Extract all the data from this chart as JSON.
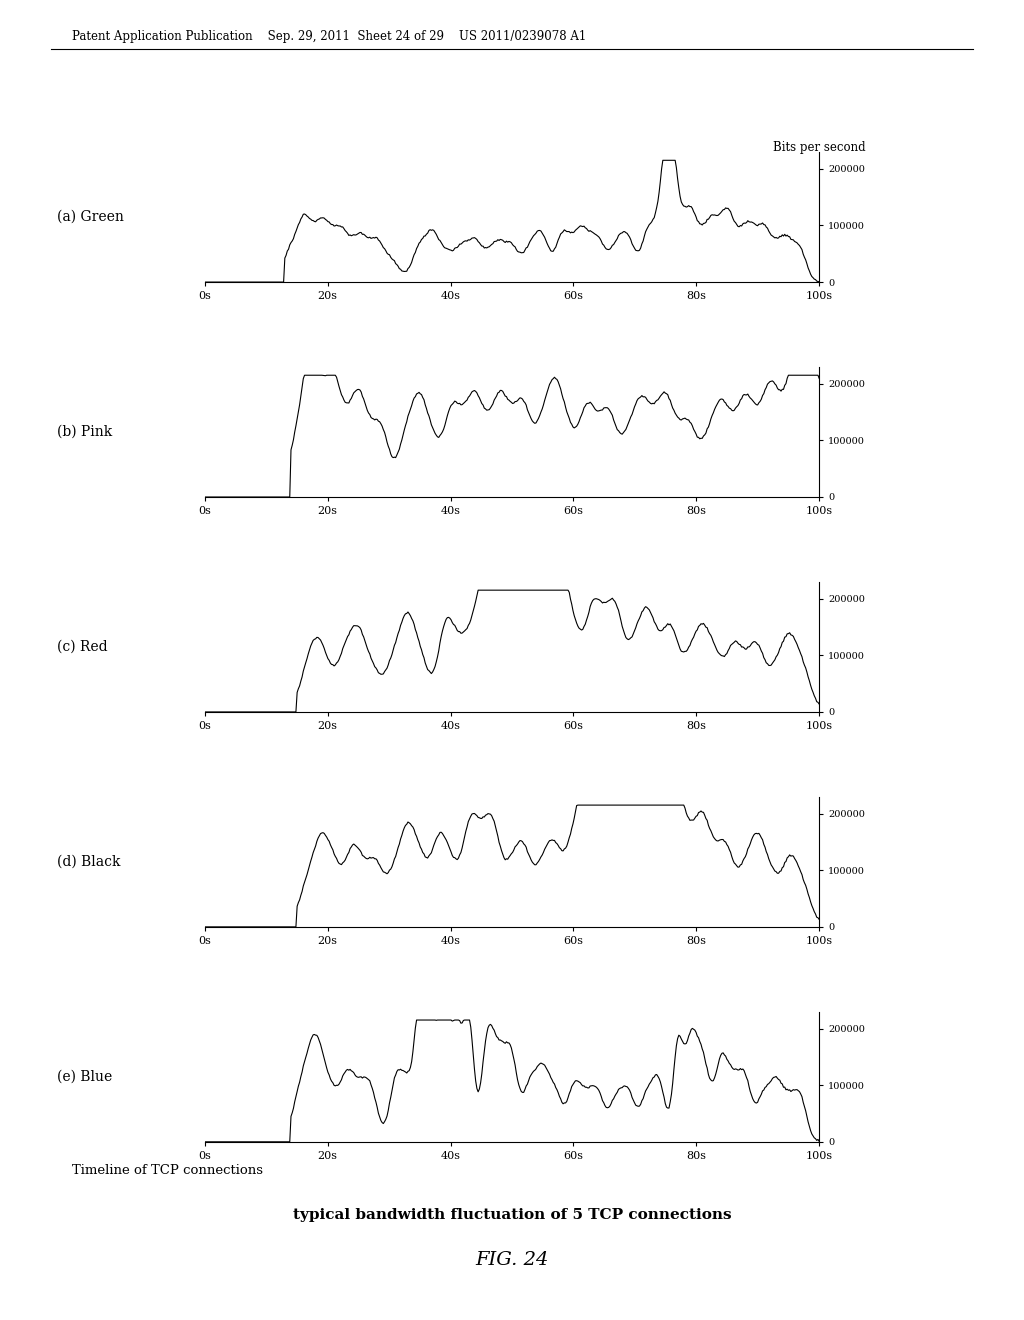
{
  "title_header": "Patent Application Publication    Sep. 29, 2011  Sheet 24 of 29    US 2011/0239078 A1",
  "bits_per_second_label": "Bits per second",
  "x_ticks": [
    "0s",
    "20s",
    "40s",
    "60s",
    "80s",
    "100s"
  ],
  "x_tick_vals": [
    0,
    20,
    40,
    60,
    80,
    100
  ],
  "y_ticks": [
    0,
    100000,
    200000
  ],
  "y_tick_labels": [
    "0",
    "100000",
    "200000"
  ],
  "ylim": [
    0,
    230000
  ],
  "xlim": [
    0,
    100
  ],
  "subplot_labels": [
    "(a) Green",
    "(b) Pink",
    "(c) Red",
    "(d) Black",
    "(e) Blue"
  ],
  "x_axis_label": "Timeline of TCP connections",
  "main_title": "typical bandwidth fluctuation of 5 TCP connections",
  "fig_label": "FIG. 24",
  "background_color": "#ffffff",
  "line_color": "#000000",
  "line_width": 0.8
}
